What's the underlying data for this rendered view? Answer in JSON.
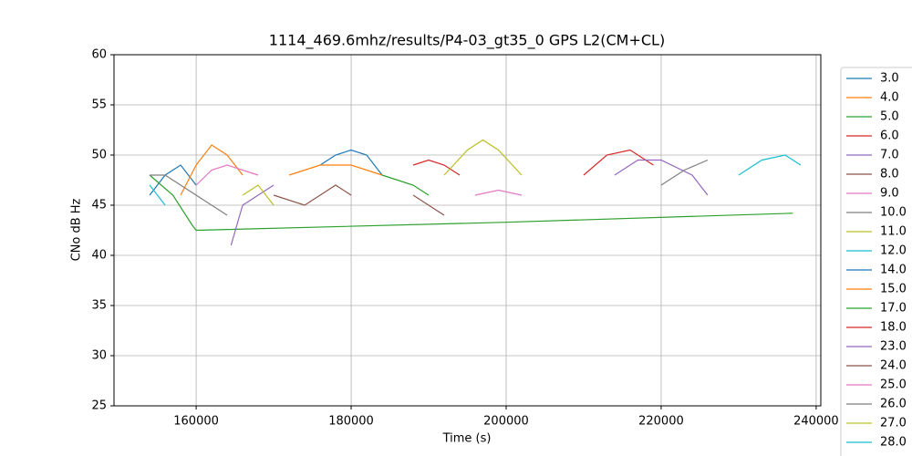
{
  "chart_data": {
    "type": "line",
    "title": "1114_469.6mhz/results/P4-03_gt35_0 GPS L2(CM+CL)",
    "x_label": "Time (s)",
    "y_label": "CNo dB Hz",
    "xlim": [
      149400,
      240600
    ],
    "xticks": [
      160000,
      180000,
      200000,
      220000,
      240000
    ],
    "ylim": [
      25,
      60
    ],
    "yticks": [
      25,
      30,
      35,
      40,
      45,
      50,
      55,
      60
    ],
    "grid": true,
    "legend": "right",
    "series": [
      {
        "name": "3.0",
        "color": "#1f77b4",
        "x": [
          154000,
          156000,
          158000,
          160000
        ],
        "values": [
          46,
          48,
          49,
          47
        ]
      },
      {
        "name": "4.0",
        "color": "#ff7f0e",
        "x": [
          158000,
          160000,
          162000,
          164000,
          166000
        ],
        "values": [
          46,
          49,
          51,
          50,
          48
        ]
      },
      {
        "name": "5.0",
        "color": "#2ca02c",
        "x": [
          154000,
          157000,
          159500,
          160000,
          200000,
          237000
        ],
        "values": [
          48,
          46,
          43,
          42.5,
          43.3,
          44.2
        ]
      },
      {
        "name": "6.0",
        "color": "#d62728",
        "x": [
          188000,
          190000,
          192000,
          194000
        ],
        "values": [
          49,
          49.5,
          49,
          48
        ]
      },
      {
        "name": "7.0",
        "color": "#9467bd",
        "x": [
          164500,
          166000,
          168000,
          170000
        ],
        "values": [
          41,
          45,
          46,
          47
        ]
      },
      {
        "name": "8.0",
        "color": "#8c564b",
        "x": [
          170000,
          174000,
          178000,
          180000
        ],
        "values": [
          46,
          45,
          47,
          46
        ]
      },
      {
        "name": "9.0",
        "color": "#e377c2",
        "x": [
          160000,
          162000,
          164000,
          166000,
          168000
        ],
        "values": [
          47,
          48.5,
          49,
          48.5,
          48
        ]
      },
      {
        "name": "10.0",
        "color": "#7f7f7f",
        "x": [
          154000,
          156000,
          158000,
          160000,
          162000,
          164000
        ],
        "values": [
          48,
          48,
          47,
          46,
          45,
          44
        ]
      },
      {
        "name": "11.0",
        "color": "#bcbd22",
        "x": [
          166000,
          168000,
          170000
        ],
        "values": [
          46,
          47,
          45
        ]
      },
      {
        "name": "12.0",
        "color": "#17becf",
        "x": [
          154000,
          156000
        ],
        "values": [
          47,
          45
        ]
      },
      {
        "name": "14.0",
        "color": "#1f77b4",
        "x": [
          176000,
          178000,
          180000,
          182000,
          184000
        ],
        "values": [
          49,
          50,
          50.5,
          50,
          48
        ]
      },
      {
        "name": "15.0",
        "color": "#ff7f0e",
        "x": [
          172000,
          176000,
          180000,
          184000
        ],
        "values": [
          48,
          49,
          49,
          48
        ]
      },
      {
        "name": "17.0",
        "color": "#2ca02c",
        "x": [
          184000,
          186000,
          188000,
          190000
        ],
        "values": [
          48,
          47.5,
          47,
          46
        ]
      },
      {
        "name": "18.0",
        "color": "#d62728",
        "x": [
          210000,
          213000,
          216000,
          219000
        ],
        "values": [
          48,
          50,
          50.5,
          49
        ]
      },
      {
        "name": "23.0",
        "color": "#9467bd",
        "x": [
          214000,
          217000,
          220000,
          224000,
          226000
        ],
        "values": [
          48,
          49.5,
          49.5,
          48,
          46
        ]
      },
      {
        "name": "24.0",
        "color": "#8c564b",
        "x": [
          188000,
          190000,
          192000
        ],
        "values": [
          46,
          45,
          44
        ]
      },
      {
        "name": "25.0",
        "color": "#e377c2",
        "x": [
          196000,
          199000,
          202000
        ],
        "values": [
          46,
          46.5,
          46
        ]
      },
      {
        "name": "26.0",
        "color": "#7f7f7f",
        "x": [
          220000,
          223000,
          226000
        ],
        "values": [
          47,
          48.5,
          49.5
        ]
      },
      {
        "name": "27.0",
        "color": "#bcbd22",
        "x": [
          192000,
          195000,
          197000,
          199000,
          202000
        ],
        "values": [
          48,
          50.5,
          51.5,
          50.5,
          48
        ]
      },
      {
        "name": "28.0",
        "color": "#17becf",
        "x": [
          230000,
          233000,
          236000,
          238000
        ],
        "values": [
          48,
          49.5,
          50,
          49
        ]
      }
    ]
  }
}
